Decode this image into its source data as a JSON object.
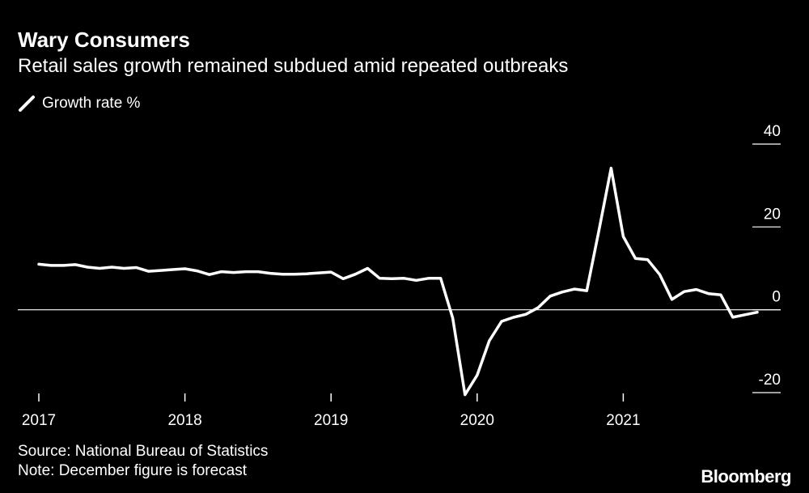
{
  "header": {
    "title": "Wary Consumers",
    "subtitle": "Retail sales growth remained subdued amid repeated outbreaks"
  },
  "footer": {
    "source": "Source: National Bureau of Statistics",
    "note": "Note: December figure is forecast",
    "brand": "Bloomberg"
  },
  "colors": {
    "background": "#000000",
    "line": "#ffffff"
  },
  "chart_data": {
    "type": "line",
    "title": "Wary Consumers",
    "subtitle": "Retail sales growth remained subdued amid repeated outbreaks",
    "legend": [
      "Growth rate %"
    ],
    "legend_position": "top-left",
    "xlabel": "",
    "ylabel": "Growth rate %",
    "ylim": [
      -20,
      40
    ],
    "yticks": [
      40,
      20,
      0,
      -20
    ],
    "y_axis_side": "right",
    "x_range": [
      2017.0,
      2022.0
    ],
    "xticks": [
      {
        "value": 2017,
        "label": "2017"
      },
      {
        "value": 2018,
        "label": "2018"
      },
      {
        "value": 2019,
        "label": "2019"
      },
      {
        "value": 2020,
        "label": "2020"
      },
      {
        "value": 2021,
        "label": "2021"
      }
    ],
    "series": [
      {
        "name": "Growth rate %",
        "x": [
          2017.0,
          2017.083,
          2017.167,
          2017.25,
          2017.333,
          2017.417,
          2017.5,
          2017.583,
          2017.667,
          2017.75,
          2017.833,
          2017.917,
          2018.0,
          2018.083,
          2018.167,
          2018.25,
          2018.333,
          2018.417,
          2018.5,
          2018.583,
          2018.667,
          2018.75,
          2018.833,
          2018.917,
          2019.0,
          2019.083,
          2019.167,
          2019.25,
          2019.333,
          2019.417,
          2019.5,
          2019.583,
          2019.667,
          2019.75,
          2019.833,
          2019.917,
          2020.0,
          2020.083,
          2020.167,
          2020.25,
          2020.333,
          2020.417,
          2020.5,
          2020.583,
          2020.667,
          2020.75,
          2020.833,
          2020.917,
          2021.0,
          2021.083,
          2021.167,
          2021.25,
          2021.333,
          2021.417,
          2021.5,
          2021.583,
          2021.667,
          2021.75,
          2021.833,
          2021.917
        ],
        "values": [
          11.0,
          10.7,
          10.7,
          10.9,
          10.3,
          10.0,
          10.3,
          10.0,
          10.2,
          9.3,
          9.5,
          9.7,
          9.9,
          9.4,
          8.5,
          9.2,
          9.0,
          9.2,
          9.2,
          8.8,
          8.6,
          8.6,
          8.7,
          8.9,
          9.1,
          7.5,
          8.6,
          10.0,
          7.6,
          7.5,
          7.6,
          7.1,
          7.6,
          7.6,
          -2.0,
          -20.5,
          -15.8,
          -7.5,
          -2.8,
          -1.8,
          -1.1,
          0.5,
          3.3,
          4.3,
          5.0,
          4.6,
          19.0,
          34.2,
          17.7,
          12.4,
          12.1,
          8.5,
          2.5,
          4.4,
          4.9,
          3.9,
          3.6,
          -1.8,
          -1.2,
          -0.6
        ]
      }
    ]
  }
}
